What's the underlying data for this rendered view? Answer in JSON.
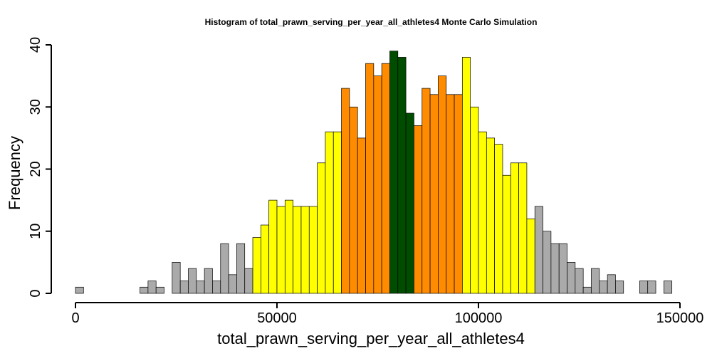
{
  "chart_data": {
    "type": "bar",
    "title": "Histogram of  total_prawn_serving_per_year_all_athletes4  Monte Carlo Simulation",
    "xlabel": "total_prawn_serving_per_year_all_athletes4",
    "ylabel": "Frequency",
    "xlim": [
      0,
      150000
    ],
    "ylim": [
      0,
      40
    ],
    "x_ticks": [
      0,
      50000,
      100000,
      150000
    ],
    "y_ticks": [
      0,
      10,
      20,
      30,
      40
    ],
    "bin_start": 0,
    "bin_width": 2000,
    "counts": [
      1,
      0,
      0,
      0,
      0,
      0,
      0,
      0,
      1,
      2,
      1,
      0,
      5,
      2,
      4,
      2,
      4,
      2,
      8,
      3,
      8,
      4,
      9,
      11,
      15,
      14,
      15,
      14,
      14,
      14,
      21,
      26,
      26,
      33,
      30,
      25,
      37,
      35,
      37,
      39,
      38,
      29,
      27,
      33,
      32,
      35,
      32,
      32,
      38,
      30,
      26,
      25,
      24,
      19,
      21,
      21,
      12,
      14,
      10,
      8,
      8,
      5,
      4,
      1,
      4,
      2,
      3,
      2,
      0,
      0,
      2,
      2,
      0,
      2
    ],
    "colors": {
      "tail": "#aaaaaa",
      "outer": "#ffff00",
      "inner": "#ff8c00",
      "center": "#004d00"
    },
    "color_bands": [
      {
        "from": 0,
        "to": 44000,
        "color": "#aaaaaa"
      },
      {
        "from": 44000,
        "to": 66000,
        "color": "#ffff00"
      },
      {
        "from": 66000,
        "to": 78000,
        "color": "#ff8c00"
      },
      {
        "from": 78000,
        "to": 84000,
        "color": "#004d00"
      },
      {
        "from": 84000,
        "to": 96000,
        "color": "#ff8c00"
      },
      {
        "from": 96000,
        "to": 114000,
        "color": "#ffff00"
      },
      {
        "from": 114000,
        "to": 148000,
        "color": "#aaaaaa"
      }
    ],
    "grid": false,
    "legend": "none"
  }
}
